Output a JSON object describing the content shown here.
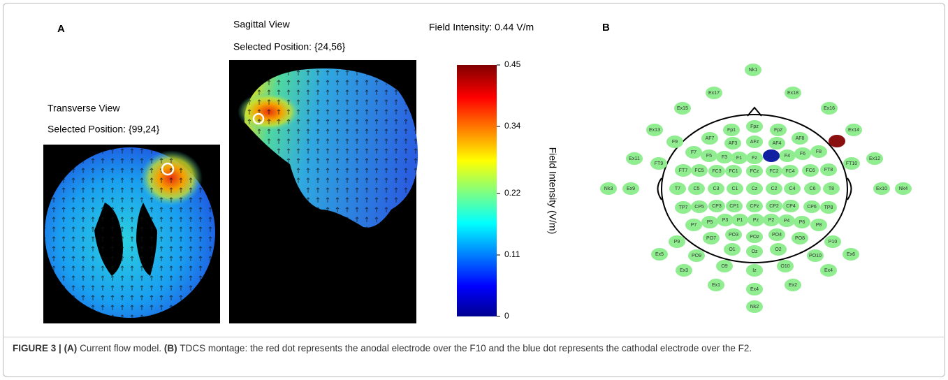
{
  "panel_a": {
    "label": "A",
    "transverse": {
      "title": "Transverse View",
      "position": "Selected Position: {99,24}"
    },
    "sagittal": {
      "title": "Sagittal View",
      "position": "Selected Position: {24,56}"
    },
    "field_intensity": "Field Intensity: 0.44 V/m",
    "colorbar": {
      "label": "Field Intensity (V/m)",
      "lim": [
        0,
        0.45
      ],
      "ticks": [
        0.45,
        0.34,
        0.22,
        0.11,
        0
      ]
    }
  },
  "panel_b": {
    "label": "B",
    "electrodes": [
      "Nk1",
      "Ex17",
      "Ex18",
      "Ex15",
      "Ex16",
      "Ex13",
      "Fp1",
      "Fpz",
      "Fp2",
      "Ex14",
      "F9",
      "AF7",
      "AF3",
      "AFz",
      "AF4",
      "AF8",
      "Ex11",
      "F7",
      "F5",
      "F3",
      "F1",
      "Fz",
      "F4",
      "F6",
      "F8",
      "Ex12",
      "FT9",
      "FT10",
      "FT7",
      "FC5",
      "FC3",
      "FC1",
      "FCz",
      "FC2",
      "FC4",
      "FC6",
      "FT8",
      "Nk3",
      "Ex9",
      "T7",
      "C5",
      "C3",
      "C1",
      "Cz",
      "C2",
      "C4",
      "C6",
      "T8",
      "Ex10",
      "Nk4",
      "TP7",
      "CP5",
      "CP3",
      "CP1",
      "CPz",
      "CP2",
      "CP4",
      "CP6",
      "TP8",
      "P7",
      "P5",
      "P3",
      "P1",
      "Pz",
      "P2",
      "P4",
      "P6",
      "P8",
      "P9",
      "PO7",
      "PO3",
      "POz",
      "PO4",
      "PO8",
      "P10",
      "Ex5",
      "PO9",
      "O1",
      "Oz",
      "O2",
      "PO10",
      "Ex6",
      "Ex3",
      "O9",
      "Iz",
      "O10",
      "Ex4",
      "Ex1",
      "Ex2",
      "Ex4",
      "Nk2"
    ]
  },
  "caption": [
    {
      "text": "FIGURE 3 |",
      "bold": true
    },
    {
      "text": "(A)",
      "bold": true
    },
    {
      "text": "Current flow model.",
      "bold": false
    },
    {
      "text": "(B)",
      "bold": true
    },
    {
      "text": "TDCS montage: the red dot represents the anodal electrode over the F10 and the blue dot represents the cathodal electrode over the F2.",
      "bold": false
    }
  ]
}
